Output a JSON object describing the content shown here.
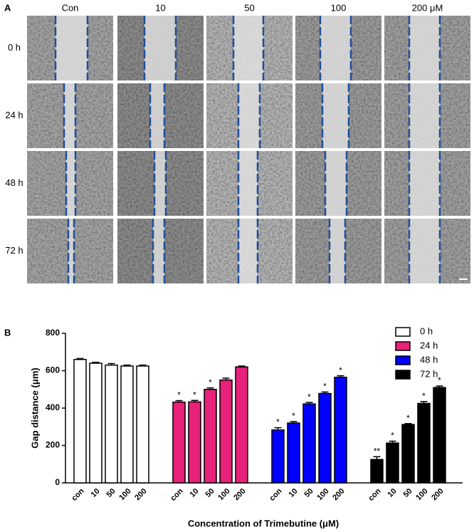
{
  "panel_a": {
    "label": "A",
    "columns": [
      "Con",
      "10",
      "50",
      "100",
      "200 μM"
    ],
    "rows": [
      "0 h",
      "24 h",
      "48 h",
      "72 h"
    ]
  },
  "chart_data": {
    "type": "bar",
    "panel_label": "B",
    "ylabel": "Gap distance (μm)",
    "xlabel": "Concentration of Trimebutine (μM)",
    "categories": [
      "con",
      "10",
      "50",
      "100",
      "200"
    ],
    "series": [
      {
        "name": "0 h",
        "color": "#ffffff",
        "values": [
          660,
          640,
          630,
          625,
          625
        ],
        "errors": [
          5,
          5,
          8,
          5,
          5
        ],
        "significance": [
          null,
          null,
          null,
          null,
          null
        ]
      },
      {
        "name": "24 h",
        "color": "#e8217a",
        "values": [
          432,
          433,
          500,
          550,
          620
        ],
        "errors": [
          8,
          8,
          8,
          10,
          5
        ],
        "significance": [
          "*",
          "*",
          "*",
          null,
          null
        ]
      },
      {
        "name": "48 h",
        "color": "#0000ff",
        "values": [
          283,
          320,
          422,
          478,
          565
        ],
        "errors": [
          12,
          8,
          8,
          8,
          8
        ],
        "significance": [
          "*",
          "*",
          "*",
          "*",
          "*"
        ]
      },
      {
        "name": "72 h",
        "color": "#000000",
        "values": [
          125,
          213,
          312,
          425,
          510
        ],
        "errors": [
          15,
          10,
          5,
          10,
          8
        ],
        "significance": [
          "**",
          "*",
          "*",
          "*",
          "*"
        ]
      }
    ],
    "ylim": [
      0,
      800
    ],
    "yticks": [
      0,
      200,
      400,
      600,
      800
    ],
    "legend": "top-right"
  }
}
